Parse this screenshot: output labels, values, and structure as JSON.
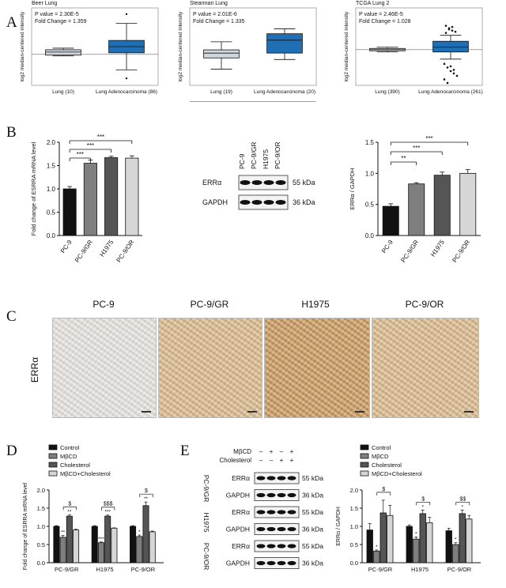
{
  "panels": {
    "A": "A",
    "B": "B",
    "C": "C",
    "D": "D",
    "E": "E"
  },
  "colors": {
    "box_fill": "#1f6fb5",
    "box_grey": "#cfd6dc",
    "black": "#111111",
    "mid": "#7f7f7f",
    "dark": "#555555",
    "light": "#d6d6d6",
    "stain_light": "#e6e2de",
    "stain_med": "#d9b98a",
    "stain_dark": "#c9985c"
  },
  "chart_data": [
    {
      "type": "box",
      "title": "Beer Lung",
      "ylabel": "log2 median-centered intensity",
      "stats": [
        "P value = 2.30E-5",
        "Fold Change = 1.359"
      ],
      "categories": [
        "Lung (10)",
        "Lung Adenocarcinoma (86)"
      ],
      "boxes": [
        {
          "min": -0.1,
          "q1": -0.05,
          "median": 0.15,
          "q3": 0.3,
          "max": 0.4,
          "fill": "grey"
        },
        {
          "min": -1.0,
          "q1": 0.1,
          "median": 0.5,
          "q3": 0.9,
          "max": 2.0,
          "outliers": [
            2.6,
            -1.55
          ],
          "fill": "blue"
        }
      ],
      "ylim": [
        -2,
        3
      ]
    },
    {
      "type": "box",
      "title": "Stearman Lung",
      "ylabel": "log2 median-centered intensity",
      "stats": [
        "P value = 2.01E-6",
        "Fold Change = 1.335"
      ],
      "categories": [
        "Lung (19)",
        "Lung Adenocarcinoma (20)"
      ],
      "boxes": [
        {
          "min": 1.0,
          "q1": 1.35,
          "median": 1.5,
          "q3": 1.6,
          "max": 1.85,
          "fill": "grey"
        },
        {
          "min": 1.3,
          "q1": 1.5,
          "median": 1.9,
          "q3": 2.1,
          "max": 2.25,
          "fill": "blue"
        }
      ],
      "ylim": [
        0.5,
        2.9
      ]
    },
    {
      "type": "box",
      "title": "TCGA Lung 2",
      "ylabel": "log2 median-centered intensity",
      "stats": [
        "P value = 2.46E-5",
        "Fold Change = 1.028"
      ],
      "categories": [
        "Lung (390)",
        "Lung Adenocarcinoma (261)"
      ],
      "boxes": [
        {
          "min": -0.02,
          "q1": -0.01,
          "median": 0.0,
          "q3": 0.01,
          "max": 0.02,
          "fill": "grey"
        },
        {
          "min": -0.08,
          "q1": -0.02,
          "median": 0.02,
          "q3": 0.07,
          "max": 0.12,
          "fill": "blue"
        }
      ],
      "outliers_high": [
        0.2,
        0.18,
        0.16,
        0.15,
        0.14,
        0.17,
        0.19
      ],
      "outliers_low": [
        -0.12,
        -0.15,
        -0.18,
        -0.2,
        -0.22,
        -0.25,
        -0.28,
        -0.14,
        -0.17
      ],
      "ylim": [
        -0.3,
        0.35
      ]
    },
    {
      "type": "bar",
      "ylabel": "Fold change of ESRRA mRNA level",
      "categories": [
        "PC-9",
        "PC-9/GR",
        "H1975",
        "PC-9/OR"
      ],
      "values": [
        1.0,
        1.55,
        1.67,
        1.66
      ],
      "errors": [
        0.05,
        0.07,
        0.03,
        0.05
      ],
      "fills": [
        "black",
        "mid",
        "dark",
        "light"
      ],
      "yticks": [
        "0.0",
        "0.5",
        "1.0",
        "1.5",
        "2.0"
      ],
      "ylim": [
        0,
        2.0
      ],
      "significance": [
        "***",
        "***",
        "***"
      ]
    },
    {
      "type": "bar",
      "ylabel": "ERRα / GAPDH",
      "categories": [
        "PC-9",
        "PC-9/GR",
        "H1975",
        "PC-9/OR"
      ],
      "values": [
        0.47,
        0.83,
        0.97,
        1.0
      ],
      "errors": [
        0.04,
        0.02,
        0.05,
        0.06
      ],
      "fills": [
        "black",
        "mid",
        "dark",
        "light"
      ],
      "yticks": [
        "0.0",
        "0.5",
        "1.0",
        "1.5"
      ],
      "ylim": [
        0,
        1.5
      ],
      "significance": [
        "**",
        "***",
        "***"
      ]
    },
    {
      "type": "bar",
      "ylabel": "Fold change of ESRRA mRNA level",
      "groups": [
        "PC-9/GR",
        "H1975",
        "PC-9/OR"
      ],
      "yticks": [
        "0.0",
        "0.5",
        "1.0",
        "1.5",
        "2.0"
      ],
      "ylim": [
        0,
        2.0
      ],
      "series": [
        {
          "name": "Control",
          "values": [
            1.0,
            1.0,
            1.0
          ]
        },
        {
          "name": "MβCD",
          "values": [
            0.7,
            0.55,
            0.72
          ]
        },
        {
          "name": "Cholesterol",
          "values": [
            1.28,
            1.28,
            1.57
          ]
        },
        {
          "name": "MβCD+Cholesterol",
          "values": [
            0.9,
            0.95,
            0.85
          ]
        }
      ],
      "errors": [
        [
          0.02,
          0.05,
          0.04,
          0.02
        ],
        [
          0.02,
          0.02,
          0.03,
          0.01
        ],
        [
          0.02,
          0.04,
          0.1,
          0.02
        ]
      ],
      "bar_stars": [
        [
          "",
          "**",
          "**",
          ""
        ],
        [
          "",
          "***",
          "***",
          ""
        ],
        [
          "",
          "*",
          "**",
          ""
        ]
      ],
      "bracket_labels": [
        "$",
        "$$$",
        "$"
      ]
    },
    {
      "type": "bar",
      "ylabel": "ERRα / GAPDH",
      "groups": [
        "PC-9/GR",
        "H1975",
        "PC-9/OR"
      ],
      "yticks": [
        "0.0",
        "0.5",
        "1.0",
        "1.5",
        "2.0"
      ],
      "ylim": [
        0,
        2.0
      ],
      "series": [
        {
          "name": "Control",
          "values": [
            0.9,
            1.0,
            0.88
          ]
        },
        {
          "name": "MβCD",
          "values": [
            0.32,
            0.65,
            0.5
          ]
        },
        {
          "name": "Cholesterol",
          "values": [
            1.37,
            1.35,
            1.35
          ]
        },
        {
          "name": "MβCD+Cholesterol",
          "values": [
            1.3,
            1.1,
            1.2
          ]
        }
      ],
      "errors": [
        [
          0.18,
          0.03,
          0.35,
          0.28
        ],
        [
          0.04,
          0.06,
          0.1,
          0.15
        ],
        [
          0.07,
          0.05,
          0.1,
          0.1
        ]
      ],
      "bar_stars": [
        [
          "",
          "*",
          "",
          ""
        ],
        [
          "",
          "*",
          "*",
          ""
        ],
        [
          "",
          "*",
          "*",
          ""
        ]
      ],
      "bracket_labels": [
        "$",
        "$",
        "$$"
      ]
    }
  ],
  "legend": [
    "Control",
    "MβCD",
    "Cholesterol",
    "MβCD+Cholesterol"
  ],
  "blot_b": {
    "lanes": [
      "PC-9",
      "PC-9/GR",
      "H1975",
      "PC-9/OR"
    ],
    "rows": [
      {
        "label": "ERRα",
        "size": "55 kDa"
      },
      {
        "label": "GAPDH",
        "size": "36 kDa"
      }
    ]
  },
  "blot_e": {
    "treat_rows": [
      {
        "label": "MβCD",
        "signs": [
          "–",
          "+",
          "–",
          "+"
        ]
      },
      {
        "label": "Cholesterol",
        "signs": [
          "–",
          "–",
          "+",
          "+"
        ]
      }
    ],
    "cell_lines": [
      "PC-9/GR",
      "H1975",
      "PC-9/OR"
    ],
    "rows": [
      {
        "label": "ERRα",
        "size": "55 kDa"
      },
      {
        "label": "GAPDH",
        "size": "36 kDa"
      },
      {
        "label": "ERRα",
        "size": "55 kDa"
      },
      {
        "label": "GAPDH",
        "size": "36 kDa"
      },
      {
        "label": "ERRα",
        "size": "55 kDa"
      },
      {
        "label": "GAPDH",
        "size": "36 kDa"
      }
    ]
  },
  "ihc": {
    "titles": [
      "PC-9",
      "PC-9/GR",
      "H1975",
      "PC-9/OR"
    ],
    "row_label": "ERRα",
    "stain_levels": [
      0.1,
      0.55,
      0.95,
      0.7
    ]
  }
}
